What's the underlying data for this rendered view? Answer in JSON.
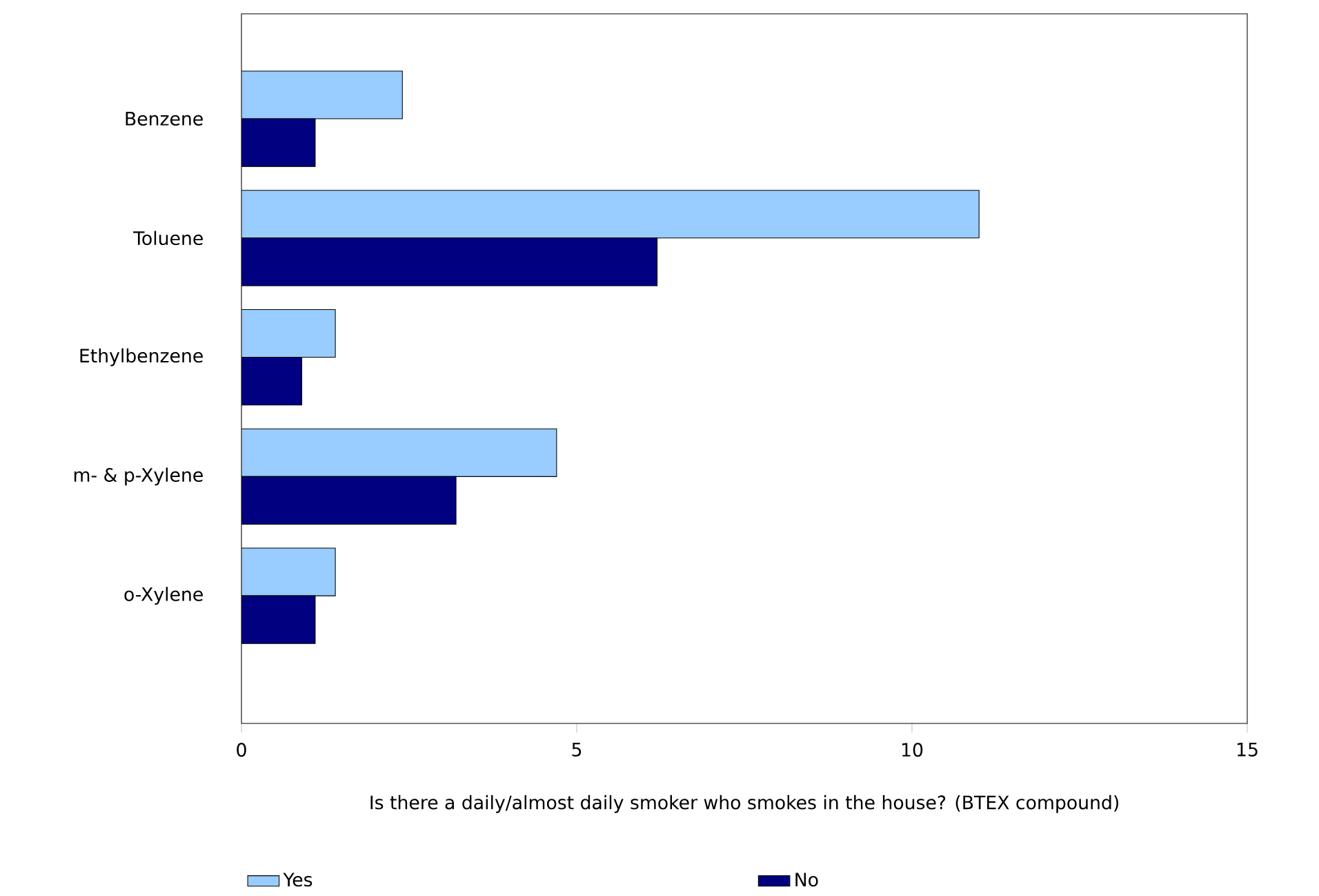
{
  "chart_data": {
    "type": "bar",
    "orientation": "horizontal",
    "categories": [
      "Benzene",
      "Toluene",
      "Ethylbenzene",
      "m- & p-Xylene",
      "o-Xylene"
    ],
    "series": [
      {
        "name": "Yes",
        "color": "#99ccff",
        "values": [
          2.4,
          11.0,
          1.4,
          4.7,
          1.4
        ]
      },
      {
        "name": "No",
        "color": "#000080",
        "values": [
          1.1,
          6.2,
          0.9,
          3.2,
          1.1
        ]
      }
    ],
    "xlim": [
      0,
      15
    ],
    "xticks": [
      0,
      5,
      10,
      15
    ],
    "xlabel": "Is there a daily/almost daily smoker who smokes in the house? (BTEX compound)",
    "legend": "bottom",
    "grid": false
  }
}
